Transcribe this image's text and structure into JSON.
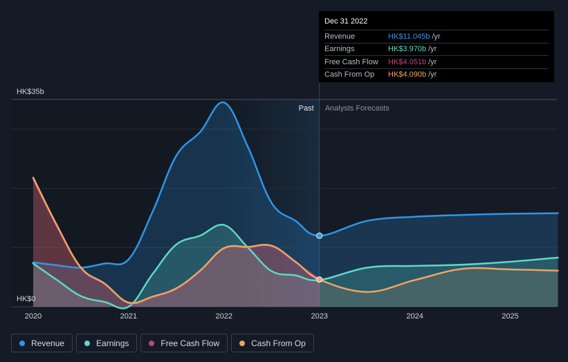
{
  "chart_data": {
    "type": "line",
    "y_top_label": "HK$35b",
    "y_bottom_label": "HK$0",
    "ylim": [
      0,
      35
    ],
    "xlim": [
      2020,
      2025.5
    ],
    "x_ticks": [
      "2020",
      "2021",
      "2022",
      "2023",
      "2024",
      "2025"
    ],
    "past_label": "Past",
    "forecast_label": "Analysts Forecasts",
    "divider_x": 2023.0,
    "series": [
      {
        "name": "Revenue",
        "color": "#2e96e6",
        "points": [
          [
            2020,
            7.5
          ],
          [
            2020.25,
            7.0
          ],
          [
            2020.5,
            6.6
          ],
          [
            2020.75,
            7.3
          ],
          [
            2021,
            8.0
          ],
          [
            2021.25,
            16
          ],
          [
            2021.5,
            25.5
          ],
          [
            2021.75,
            29.5
          ],
          [
            2022,
            34.5
          ],
          [
            2022.25,
            27
          ],
          [
            2022.5,
            17.5
          ],
          [
            2022.75,
            14.5
          ],
          [
            2023,
            12.0
          ],
          [
            2023.5,
            14.5
          ],
          [
            2024,
            15.2
          ],
          [
            2024.5,
            15.5
          ],
          [
            2025,
            15.7
          ],
          [
            2025.5,
            15.8
          ]
        ]
      },
      {
        "name": "Earnings",
        "color": "#5ed9c4",
        "points": [
          [
            2020,
            7.3
          ],
          [
            2020.25,
            4.5
          ],
          [
            2020.5,
            1.8
          ],
          [
            2020.75,
            0.8
          ],
          [
            2021,
            0
          ],
          [
            2021.25,
            5.5
          ],
          [
            2021.5,
            10.5
          ],
          [
            2021.75,
            12.0
          ],
          [
            2022,
            13.8
          ],
          [
            2022.25,
            10.0
          ],
          [
            2022.5,
            6.0
          ],
          [
            2022.75,
            5.3
          ],
          [
            2023,
            4.5
          ],
          [
            2023.5,
            6.6
          ],
          [
            2024,
            6.9
          ],
          [
            2024.5,
            7.1
          ],
          [
            2025,
            7.6
          ],
          [
            2025.5,
            8.3
          ]
        ]
      },
      {
        "name": "Free Cash Flow",
        "color": "#c2437f",
        "points": [
          [
            2020,
            21.5
          ],
          [
            2020.25,
            13.5
          ],
          [
            2020.5,
            6.5
          ],
          [
            2020.75,
            3.8
          ],
          [
            2021,
            0.6
          ],
          [
            2021.25,
            1.6
          ],
          [
            2021.5,
            3.0
          ],
          [
            2021.75,
            6.0
          ],
          [
            2022,
            9.8
          ],
          [
            2022.25,
            10.0
          ],
          [
            2022.5,
            10.2
          ],
          [
            2022.75,
            7.5
          ],
          [
            2023,
            4.6
          ]
        ]
      },
      {
        "name": "Cash From Op",
        "color": "#eda565",
        "points": [
          [
            2020,
            21.8
          ],
          [
            2020.25,
            13.7
          ],
          [
            2020.5,
            6.6
          ],
          [
            2020.75,
            3.9
          ],
          [
            2021,
            0.7
          ],
          [
            2021.25,
            1.7
          ],
          [
            2021.5,
            3.1
          ],
          [
            2021.75,
            6.1
          ],
          [
            2022,
            9.9
          ],
          [
            2022.25,
            10.1
          ],
          [
            2022.5,
            10.3
          ],
          [
            2022.75,
            7.6
          ],
          [
            2023,
            4.6
          ],
          [
            2023.5,
            2.5
          ],
          [
            2024,
            4.5
          ],
          [
            2024.5,
            6.4
          ],
          [
            2025,
            6.3
          ],
          [
            2025.5,
            6.1
          ]
        ]
      }
    ]
  },
  "tooltip": {
    "date": "Dec 31 2022",
    "rows": [
      {
        "label": "Revenue",
        "value": "HK$11.045b",
        "unit": "/yr",
        "color": "#2e96e6"
      },
      {
        "label": "Earnings",
        "value": "HK$3.970b",
        "unit": "/yr",
        "color": "#5ed9c4"
      },
      {
        "label": "Free Cash Flow",
        "value": "HK$4.051b",
        "unit": "/yr",
        "color": "#c2437f"
      },
      {
        "label": "Cash From Op",
        "value": "HK$4.090b",
        "unit": "/yr",
        "color": "#eda565"
      }
    ]
  },
  "legend": [
    {
      "label": "Revenue",
      "color": "#2e96e6"
    },
    {
      "label": "Earnings",
      "color": "#5ed9c4"
    },
    {
      "label": "Free Cash Flow",
      "color": "#c2437f"
    },
    {
      "label": "Cash From Op",
      "color": "#eda565"
    }
  ]
}
